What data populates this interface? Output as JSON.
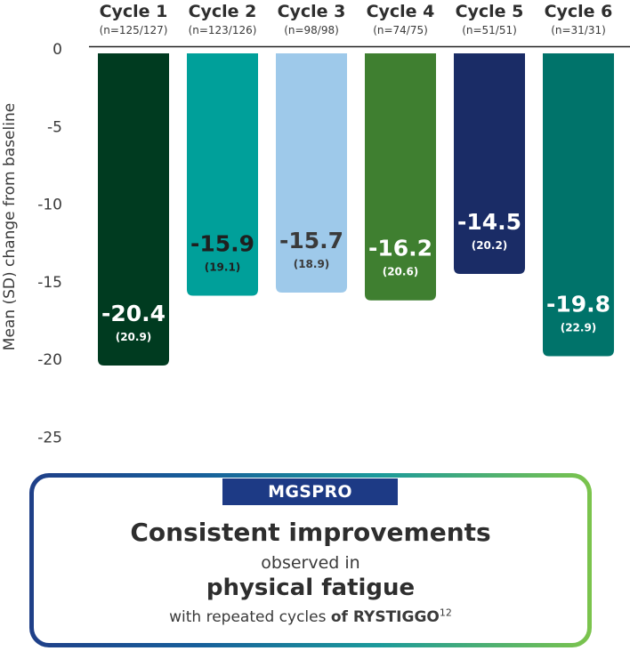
{
  "chart_data": {
    "type": "bar",
    "categories": [
      "Cycle 1",
      "Cycle 2",
      "Cycle 3",
      "Cycle 4",
      "Cycle 5",
      "Cycle 6"
    ],
    "sample_sizes": [
      "(n=125/127)",
      "(n=123/126)",
      "(n=98/98)",
      "(n=74/75)",
      "(n=51/51)",
      "(n=31/31)"
    ],
    "values": [
      -20.4,
      -15.9,
      -15.7,
      -16.2,
      -14.5,
      -19.8
    ],
    "sd": [
      20.9,
      19.1,
      18.9,
      20.6,
      20.2,
      22.9
    ],
    "value_labels": [
      "-20.4",
      "-15.9",
      "-15.7",
      "-16.2",
      "-14.5",
      "-19.8"
    ],
    "sd_labels": [
      "(20.9)",
      "(19.1)",
      "(18.9)",
      "(20.6)",
      "(20.2)",
      "(22.9)"
    ],
    "bar_colors": [
      "#003b20",
      "#00a09a",
      "#9ec9ea",
      "#3f7f30",
      "#1a2c66",
      "#00736a"
    ],
    "value_label_colors": [
      "#ffffff",
      "#1f1f1f",
      "#3a3a3a",
      "#ffffff",
      "#ffffff",
      "#ffffff"
    ],
    "ylabel": "Mean (SD) change from baseline",
    "xlabel": "",
    "ylim": [
      -25,
      0
    ],
    "yticks": [
      0,
      -5,
      -10,
      -15,
      -20,
      -25
    ],
    "ytick_labels": [
      "0",
      "-5",
      "-10",
      "-15",
      "-20",
      "-25"
    ],
    "grid": false,
    "legend": "none"
  },
  "callout": {
    "badge": "MGSPRO",
    "headline": "Consistent improvements",
    "line2": "observed in",
    "line3": "physical fatigue",
    "line4_prefix": "with repeated cycles ",
    "line4_bold": "of RYSTIGGO",
    "line4_sup": "12",
    "colors": {
      "badge_bg": "#1d3a85",
      "gradient_start": "#1f3f88",
      "gradient_end": "#7cc44c"
    }
  }
}
